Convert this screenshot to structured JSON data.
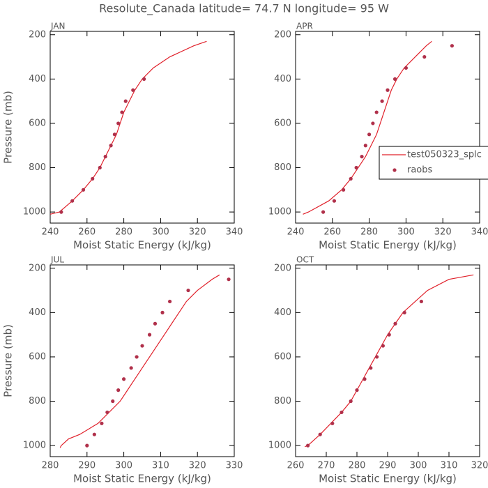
{
  "title": "Resolute_Canada  latitude= 74.7 N longitude= 95 W",
  "chart_data": [
    {
      "type": "line",
      "title": "JAN",
      "xlabel": "Moist Static Energy (kJ/kg)",
      "ylabel": "Pressure (mb)",
      "xlim": [
        240,
        340
      ],
      "xticks": [
        240,
        260,
        280,
        300,
        320,
        340
      ],
      "ylim": [
        1050,
        185
      ],
      "yticks": [
        200,
        400,
        600,
        800,
        1000
      ],
      "series": [
        {
          "name": "test050323_splc",
          "color": "#e0202a",
          "style": "line",
          "x": [
            240,
            245,
            252,
            258,
            263,
            267,
            270,
            273,
            276,
            278,
            280,
            283,
            286,
            290,
            296,
            305,
            318,
            325
          ],
          "values": [
            1010,
            1000,
            950,
            900,
            850,
            800,
            750,
            700,
            650,
            600,
            550,
            500,
            450,
            400,
            350,
            300,
            250,
            230
          ]
        },
        {
          "name": "raobs",
          "color": "#b0304a",
          "style": "markers",
          "x": [
            246,
            252,
            258,
            263,
            267,
            270,
            273,
            275,
            277,
            279,
            281,
            285,
            291
          ],
          "values": [
            1000,
            950,
            900,
            850,
            800,
            750,
            700,
            650,
            600,
            550,
            500,
            450,
            400
          ]
        }
      ]
    },
    {
      "type": "line",
      "title": "APR",
      "xlabel": "Moist Static Energy (kJ/kg)",
      "legend": "right",
      "xlim": [
        240,
        340
      ],
      "xticks": [
        240,
        260,
        280,
        300,
        320,
        340
      ],
      "ylim": [
        1050,
        185
      ],
      "yticks": [
        200,
        400,
        600,
        800,
        1000
      ],
      "series": [
        {
          "name": "test050323_splc",
          "color": "#e0202a",
          "style": "line",
          "x": [
            244,
            247,
            258,
            265,
            270,
            274,
            278,
            281,
            284,
            286,
            288,
            290,
            292,
            295,
            299,
            305,
            311,
            314
          ],
          "values": [
            1010,
            1000,
            950,
            900,
            850,
            800,
            750,
            700,
            650,
            600,
            550,
            500,
            450,
            400,
            350,
            300,
            250,
            230
          ]
        },
        {
          "name": "raobs",
          "color": "#b0304a",
          "style": "markers",
          "x": [
            255,
            261,
            266,
            270,
            273,
            276,
            278,
            280,
            282,
            284,
            287,
            290,
            294,
            300,
            310,
            325
          ],
          "values": [
            1000,
            950,
            900,
            850,
            800,
            750,
            700,
            650,
            600,
            550,
            500,
            450,
            400,
            350,
            300,
            250
          ]
        }
      ]
    },
    {
      "type": "line",
      "title": "JUL",
      "xlabel": "Moist Static Energy (kJ/kg)",
      "ylabel": "Pressure (mb)",
      "xlim": [
        280,
        330
      ],
      "xticks": [
        280,
        290,
        300,
        310,
        320,
        330
      ],
      "ylim": [
        1050,
        185
      ],
      "yticks": [
        200,
        400,
        600,
        800,
        1000
      ],
      "series": [
        {
          "name": "test050323_splc",
          "color": "#e0202a",
          "style": "line",
          "x": [
            282.7,
            283,
            285,
            288,
            291,
            293,
            296,
            299,
            301,
            303,
            305,
            307,
            309,
            311,
            313,
            315,
            317,
            320,
            324,
            326
          ],
          "values": [
            1010,
            1000,
            970,
            950,
            920,
            900,
            850,
            800,
            750,
            700,
            650,
            600,
            550,
            500,
            450,
            400,
            350,
            300,
            250,
            230
          ]
        },
        {
          "name": "raobs",
          "color": "#b0304a",
          "style": "markers",
          "x": [
            290,
            292,
            294,
            295.5,
            297,
            298.5,
            300,
            302,
            303.5,
            305,
            307,
            308.5,
            310.5,
            312.5,
            317.5,
            328.5
          ],
          "values": [
            1000,
            950,
            900,
            850,
            800,
            750,
            700,
            650,
            600,
            550,
            500,
            450,
            400,
            350,
            300,
            250
          ]
        }
      ]
    },
    {
      "type": "line",
      "title": "OCT",
      "xlabel": "Moist Static Energy (kJ/kg)",
      "xlim": [
        260,
        320
      ],
      "xticks": [
        260,
        270,
        280,
        290,
        300,
        310,
        320
      ],
      "ylim": [
        1050,
        185
      ],
      "yticks": [
        200,
        400,
        600,
        800,
        1000
      ],
      "series": [
        {
          "name": "test050323_splc",
          "color": "#e0202a",
          "style": "line",
          "x": [
            263,
            264,
            268,
            271.5,
            275,
            278,
            280,
            282,
            284,
            286,
            288,
            290,
            292.5,
            295,
            299,
            303,
            310,
            318
          ],
          "values": [
            1005,
            1000,
            950,
            900,
            850,
            800,
            750,
            700,
            650,
            600,
            550,
            500,
            450,
            400,
            350,
            300,
            250,
            230
          ]
        },
        {
          "name": "raobs",
          "color": "#b0304a",
          "style": "markers",
          "x": [
            264,
            268,
            272,
            275,
            278,
            280,
            282.5,
            284.5,
            286.5,
            288.5,
            290.5,
            292.5,
            295.5,
            301
          ],
          "values": [
            1000,
            950,
            900,
            850,
            800,
            750,
            700,
            650,
            600,
            550,
            500,
            450,
            400,
            350
          ]
        }
      ]
    }
  ]
}
